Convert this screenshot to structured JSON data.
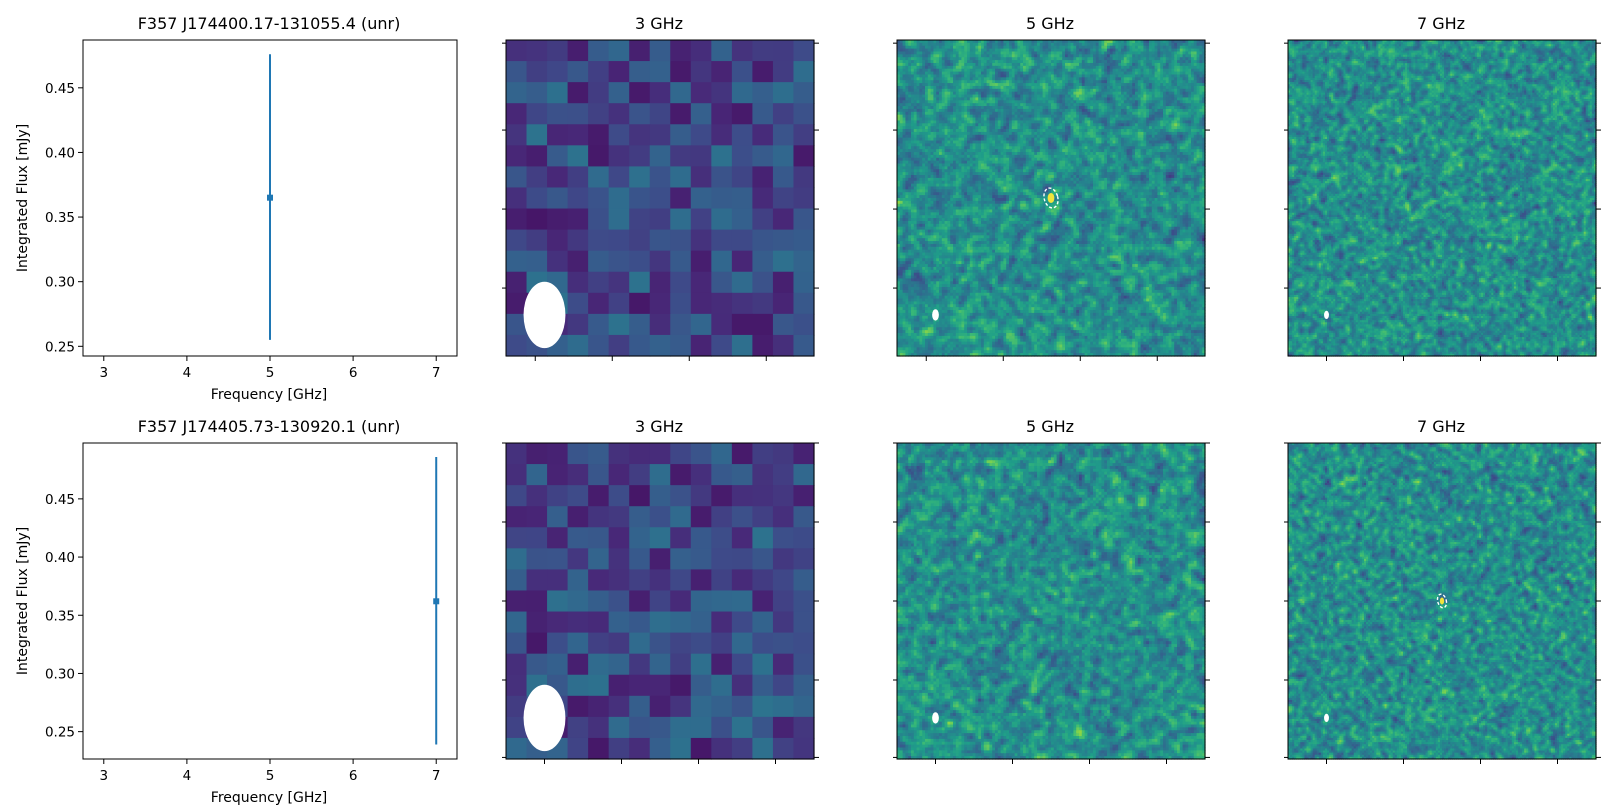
{
  "figure": {
    "background": "#ffffff"
  },
  "chart_data": [
    {
      "type": "scatter",
      "title": "F357 J174400.17-131055.4 (unr)",
      "xlabel": "Frequency [GHz]",
      "ylabel": "Integrated Flux [mJy]",
      "xlim": [
        2.75,
        7.25
      ],
      "ylim": [
        0.2425,
        0.487
      ],
      "xticks": [
        "3",
        "4",
        "5",
        "6",
        "7"
      ],
      "yticks": [
        "0.25",
        "0.30",
        "0.35",
        "0.40",
        "0.45"
      ],
      "points": [
        {
          "x": 5.0,
          "y": 0.365,
          "yerr_low": 0.255,
          "yerr_high": 0.476
        }
      ],
      "color": "#1f77b4"
    },
    {
      "type": "heatmap",
      "title": "3 GHz",
      "texture": {
        "cells": 15,
        "seed": 11,
        "blur": 0,
        "palette": "dark"
      },
      "beam": {
        "fx": 0.125,
        "fy": 0.87,
        "rx": 0.068,
        "ry": 0.105
      },
      "source_marker": null,
      "ticks": {
        "bottom": [
          0.095,
          0.345,
          0.595,
          0.845
        ],
        "right": [
          0.01,
          0.285,
          0.535,
          0.785
        ]
      }
    },
    {
      "type": "heatmap",
      "title": "5 GHz",
      "texture": {
        "cells": 110,
        "seed": 23,
        "blur": 1,
        "palette": "full"
      },
      "beam": {
        "fx": 0.125,
        "fy": 0.87,
        "rx": 0.011,
        "ry": 0.018
      },
      "source_marker": {
        "fx": 0.5,
        "fy": 0.5,
        "rx": 0.022,
        "ry": 0.032
      },
      "ticks": {
        "bottom": [
          0.095,
          0.345,
          0.595,
          0.845
        ],
        "right": [
          0.01,
          0.285,
          0.535,
          0.785
        ]
      }
    },
    {
      "type": "heatmap",
      "title": "7 GHz",
      "texture": {
        "cells": 150,
        "seed": 37,
        "blur": 1,
        "palette": "full"
      },
      "beam": {
        "fx": 0.125,
        "fy": 0.87,
        "rx": 0.008,
        "ry": 0.013
      },
      "source_marker": null,
      "ticks": {
        "bottom": [
          0.125,
          0.375,
          0.625,
          0.875
        ],
        "right": [
          0.01,
          0.285,
          0.535,
          0.785
        ]
      }
    },
    {
      "type": "scatter",
      "title": "F357 J174405.73-130920.1 (unr)",
      "xlabel": "Frequency [GHz]",
      "ylabel": "Integrated Flux [mJy]",
      "xlim": [
        2.75,
        7.25
      ],
      "ylim": [
        0.2265,
        0.498
      ],
      "xticks": [
        "3",
        "4",
        "5",
        "6",
        "7"
      ],
      "yticks": [
        "0.25",
        "0.30",
        "0.35",
        "0.40",
        "0.45"
      ],
      "points": [
        {
          "x": 7.0,
          "y": 0.362,
          "yerr_low": 0.239,
          "yerr_high": 0.486
        }
      ],
      "color": "#1f77b4"
    },
    {
      "type": "heatmap",
      "title": "3 GHz",
      "texture": {
        "cells": 15,
        "seed": 53,
        "blur": 0,
        "palette": "dark"
      },
      "beam": {
        "fx": 0.125,
        "fy": 0.87,
        "rx": 0.068,
        "ry": 0.105
      },
      "source_marker": null,
      "ticks": {
        "bottom": [
          0.125,
          0.375,
          0.625,
          0.875
        ],
        "right": [
          0.0,
          0.25,
          0.5,
          0.75,
          0.995
        ]
      }
    },
    {
      "type": "heatmap",
      "title": "5 GHz",
      "texture": {
        "cells": 110,
        "seed": 67,
        "blur": 1,
        "palette": "full"
      },
      "beam": {
        "fx": 0.125,
        "fy": 0.87,
        "rx": 0.011,
        "ry": 0.018
      },
      "source_marker": null,
      "ticks": {
        "bottom": [
          0.125,
          0.375,
          0.625,
          0.875
        ],
        "right": [
          0.0,
          0.25,
          0.5,
          0.75,
          0.995
        ]
      }
    },
    {
      "type": "heatmap",
      "title": "7 GHz",
      "texture": {
        "cells": 150,
        "seed": 79,
        "blur": 1,
        "palette": "full"
      },
      "beam": {
        "fx": 0.125,
        "fy": 0.87,
        "rx": 0.008,
        "ry": 0.013
      },
      "source_marker": {
        "fx": 0.5,
        "fy": 0.5,
        "rx": 0.014,
        "ry": 0.022
      },
      "ticks": {
        "bottom": [
          0.125,
          0.375,
          0.625,
          0.875
        ],
        "right": [
          0.0,
          0.25,
          0.5,
          0.75,
          0.995
        ]
      }
    }
  ]
}
